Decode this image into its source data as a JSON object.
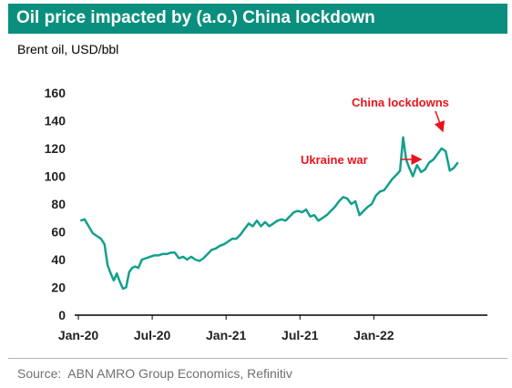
{
  "title": "Oil price impacted by (a.o.) China lockdown",
  "subtitle": "Brent oil, USD/bbl",
  "source": "Source:  ABN AMRO Group Economics, Refinitiv",
  "colors": {
    "title_bg": "#0a8f7e",
    "line": "#12a08c",
    "annotation": "#e8141c"
  },
  "chart_data": {
    "type": "line",
    "title": "Oil price impacted by (a.o.) China lockdown",
    "ylabel": "Brent oil, USD/bbl",
    "xlabel": "",
    "ylim": [
      0,
      160
    ],
    "yticks": [
      0,
      20,
      40,
      60,
      80,
      100,
      120,
      140,
      160
    ],
    "xlim": [
      "2020-01",
      "2022-10"
    ],
    "xticks": [
      "Jan-20",
      "Jul-20",
      "Jan-21",
      "Jul-21",
      "Jan-22"
    ],
    "grid": false,
    "series": [
      {
        "x": [
          "2020-01",
          "2020-01",
          "2020-01",
          "2020-02",
          "2020-02",
          "2020-02",
          "2020-03",
          "2020-03",
          "2020-03",
          "2020-03",
          "2020-04",
          "2020-04",
          "2020-04",
          "2020-04",
          "2020-05",
          "2020-05",
          "2020-05",
          "2020-05",
          "2020-06",
          "2020-06",
          "2020-06",
          "2020-07",
          "2020-07",
          "2020-07",
          "2020-08",
          "2020-08",
          "2020-08",
          "2020-09",
          "2020-09",
          "2020-09",
          "2020-10",
          "2020-10",
          "2020-10",
          "2020-11",
          "2020-11",
          "2020-11",
          "2020-12",
          "2020-12",
          "2020-12",
          "2021-01",
          "2021-01",
          "2021-01",
          "2021-02",
          "2021-02",
          "2021-02",
          "2021-03",
          "2021-03",
          "2021-03",
          "2021-04",
          "2021-04",
          "2021-04",
          "2021-05",
          "2021-05",
          "2021-05",
          "2021-06",
          "2021-06",
          "2021-06",
          "2021-07",
          "2021-07",
          "2021-07",
          "2021-08",
          "2021-08",
          "2021-08",
          "2021-09",
          "2021-09",
          "2021-09",
          "2021-10",
          "2021-10",
          "2021-10",
          "2021-11",
          "2021-11",
          "2021-11",
          "2021-12",
          "2021-12",
          "2021-12",
          "2022-01",
          "2022-01",
          "2022-01",
          "2022-02",
          "2022-02",
          "2022-02",
          "2022-03",
          "2022-03",
          "2022-03",
          "2022-03",
          "2022-04",
          "2022-04",
          "2022-04",
          "2022-05",
          "2022-05",
          "2022-05",
          "2022-06",
          "2022-06",
          "2022-06",
          "2022-07",
          "2022-07",
          "2022-07"
        ],
        "values": [
          68,
          69,
          64,
          59,
          57,
          55,
          51,
          36,
          30,
          25,
          30,
          24,
          19,
          20,
          31,
          34,
          35,
          34,
          40,
          41,
          42,
          43,
          43,
          44,
          44,
          45,
          45,
          41,
          42,
          40,
          42,
          40,
          39,
          41,
          44,
          47,
          48,
          50,
          51,
          53,
          55,
          55,
          58,
          62,
          66,
          64,
          68,
          64,
          67,
          64,
          66,
          68,
          69,
          68,
          71,
          74,
          75,
          74,
          76,
          71,
          72,
          68,
          70,
          72,
          75,
          78,
          82,
          85,
          84,
          80,
          82,
          72,
          75,
          78,
          80,
          86,
          89,
          90,
          94,
          98,
          101,
          104,
          128,
          112,
          106,
          100,
          108,
          103,
          105,
          110,
          112,
          116,
          120,
          118,
          104,
          106,
          110
        ]
      }
    ],
    "annotations": [
      {
        "text": "China lockdowns"
      },
      {
        "text": "Ukraine war"
      }
    ]
  }
}
